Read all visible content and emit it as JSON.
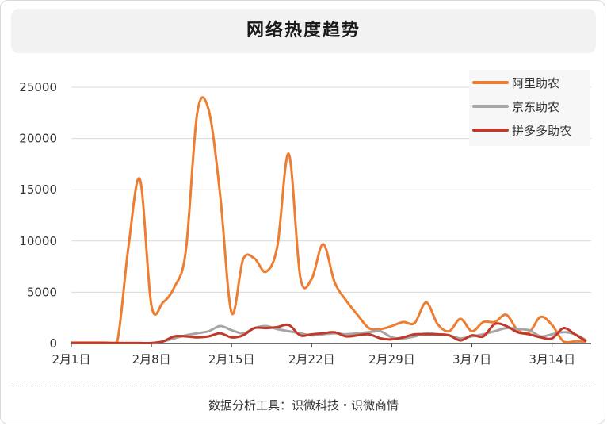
{
  "header": {
    "title": "网络热度趋势"
  },
  "footer": {
    "text": "数据分析工具：识微科技・识微商情"
  },
  "chart_data": {
    "type": "line",
    "title": "网络热度趋势",
    "xlabel": "",
    "ylabel": "",
    "ylim": [
      0,
      25000
    ],
    "yticks": [
      0,
      5000,
      10000,
      15000,
      20000,
      25000
    ],
    "xtick_labels": [
      "2月1日",
      "2月8日",
      "2月15日",
      "2月22日",
      "2月29日",
      "3月7日",
      "3月14日"
    ],
    "xtick_index": [
      0,
      7,
      14,
      21,
      28,
      35,
      42
    ],
    "legend_position": "top-right",
    "grid": true,
    "x": [
      "2月1日",
      "2月2日",
      "2月3日",
      "2月4日",
      "2月5日",
      "2月6日",
      "2月7日",
      "2月8日",
      "2月9日",
      "2月10日",
      "2月11日",
      "2月12日",
      "2月13日",
      "2月14日",
      "2月15日",
      "2月16日",
      "2月17日",
      "2月18日",
      "2月19日",
      "2月20日",
      "2月21日",
      "2月22日",
      "2月23日",
      "2月24日",
      "2月25日",
      "2月26日",
      "2月27日",
      "2月28日",
      "2月29日",
      "3月1日",
      "3月2日",
      "3月3日",
      "3月4日",
      "3月5日",
      "3月6日",
      "3月7日",
      "3月8日",
      "3月9日",
      "3月10日",
      "3月11日",
      "3月12日",
      "3月13日",
      "3月14日",
      "3月15日",
      "3月16日",
      "3月17日"
    ],
    "series": [
      {
        "name": "阿里助农",
        "color": "#ed7d31",
        "values": [
          100,
          100,
          100,
          100,
          100,
          9500,
          16000,
          3700,
          4000,
          5500,
          9000,
          22500,
          22800,
          14500,
          3000,
          8200,
          8300,
          7000,
          9500,
          18500,
          6500,
          6300,
          9700,
          6000,
          4200,
          2800,
          1500,
          1400,
          1700,
          2100,
          2000,
          4000,
          1900,
          1200,
          2400,
          1200,
          2100,
          2100,
          2800,
          1300,
          1100,
          2600,
          1800,
          200,
          200,
          200
        ],
        "_pad": ""
      },
      {
        "name": "京东助农",
        "color": "#a5a5a5",
        "values": [
          50,
          50,
          50,
          50,
          50,
          50,
          50,
          50,
          200,
          500,
          800,
          1000,
          1200,
          1700,
          1300,
          1000,
          1500,
          1700,
          1400,
          1200,
          1000,
          800,
          900,
          1000,
          900,
          1000,
          1100,
          1200,
          600,
          500,
          700,
          1000,
          900,
          800,
          500,
          700,
          900,
          1200,
          1500,
          1400,
          1300,
          700,
          900,
          1100,
          900,
          300
        ]
      },
      {
        "name": "拼多多助农",
        "color": "#c0392b",
        "values": [
          50,
          50,
          50,
          50,
          50,
          50,
          50,
          50,
          200,
          700,
          700,
          600,
          700,
          1000,
          600,
          800,
          1500,
          1500,
          1600,
          1800,
          800,
          900,
          1000,
          1100,
          700,
          800,
          900,
          500,
          400,
          600,
          900,
          900,
          900,
          800,
          300,
          800,
          700,
          1900,
          1700,
          1100,
          900,
          600,
          500,
          1500,
          900,
          200
        ]
      }
    ]
  }
}
